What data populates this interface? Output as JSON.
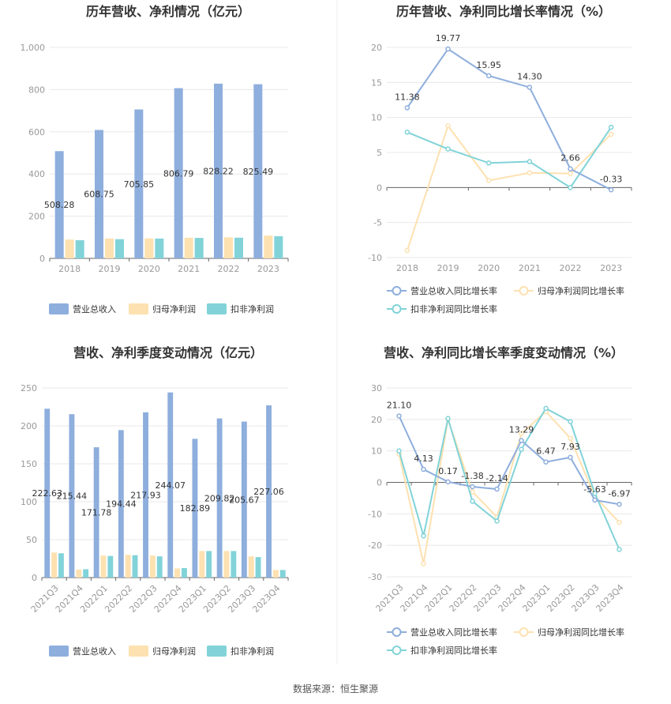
{
  "colors": {
    "revenue": "#8eaedd",
    "net_profit": "#fde1b0",
    "deducted_profit": "#81d3d8",
    "line_revenue": "#8eaedd",
    "line_net_profit": "#fde1b0",
    "line_deducted_profit": "#81d3d8",
    "grid": "#e8e8e8",
    "axis": "#666666",
    "divider": "#eeeeee"
  },
  "source": "数据来源：恒生聚源",
  "chart_data": [
    {
      "id": "annual-bar",
      "type": "bar",
      "title": "历年营收、净利情况（亿元）",
      "categories": [
        "2018",
        "2019",
        "2020",
        "2021",
        "2022",
        "2023"
      ],
      "ylim": [
        0,
        1000
      ],
      "yticks": [
        0,
        200,
        400,
        600,
        800,
        1000
      ],
      "ytick_labels": [
        "0",
        "200",
        "400",
        "600",
        "800",
        "1,000"
      ],
      "series": [
        {
          "name": "营业总收入",
          "values": [
            508.28,
            608.75,
            705.85,
            806.79,
            828.22,
            825.49
          ],
          "labels": [
            "508.28",
            "608.75",
            "705.85",
            "806.79",
            "828.22",
            "825.49"
          ]
        },
        {
          "name": "归母净利润",
          "values": [
            89,
            94,
            95,
            98,
            100,
            108
          ]
        },
        {
          "name": "扣非净利润",
          "values": [
            86,
            91,
            94,
            97,
            98,
            105
          ]
        }
      ],
      "legend": "bottom"
    },
    {
      "id": "annual-line",
      "type": "line",
      "title": "历年营收、净利同比增长率情况（%）",
      "categories": [
        "2018",
        "2019",
        "2020",
        "2021",
        "2022",
        "2023"
      ],
      "ylim": [
        -10,
        20
      ],
      "yticks": [
        -10,
        -5,
        0,
        5,
        10,
        15,
        20
      ],
      "ytick_labels": [
        "-10",
        "-5",
        "0",
        "5",
        "10",
        "15",
        "20"
      ],
      "series": [
        {
          "name": "营业总收入同比增长率",
          "values": [
            11.38,
            19.77,
            15.95,
            14.3,
            2.66,
            -0.33
          ],
          "labels": [
            "11.38",
            "19.77",
            "15.95",
            "14.30",
            "2.66",
            "-0.33"
          ]
        },
        {
          "name": "归母净利润同比增长率",
          "values": [
            -9.0,
            8.8,
            1.0,
            2.1,
            2.0,
            7.6
          ]
        },
        {
          "name": "扣非净利润同比增长率",
          "values": [
            7.9,
            5.5,
            3.5,
            3.7,
            0.0,
            8.6
          ]
        }
      ],
      "legend": "bottom"
    },
    {
      "id": "quarter-bar",
      "type": "bar",
      "title": "营收、净利季度变动情况（亿元）",
      "categories": [
        "2021Q3",
        "2021Q4",
        "2022Q1",
        "2022Q2",
        "2022Q3",
        "2022Q4",
        "2023Q1",
        "2023Q2",
        "2023Q3",
        "2023Q4"
      ],
      "ylim": [
        0,
        250
      ],
      "yticks": [
        0,
        50,
        100,
        150,
        200,
        250
      ],
      "ytick_labels": [
        "0",
        "50",
        "100",
        "150",
        "200",
        "250"
      ],
      "series": [
        {
          "name": "营业总收入",
          "values": [
            222.63,
            215.44,
            171.78,
            194.44,
            217.93,
            244.07,
            182.89,
            209.82,
            205.67,
            227.06
          ],
          "labels": [
            "222.63",
            "215.44",
            "171.78",
            "194.44",
            "217.93",
            "244.07",
            "182.89",
            "209.82",
            "205.67",
            "227.06"
          ]
        },
        {
          "name": "归母净利润",
          "values": [
            33,
            10.5,
            29,
            30,
            29,
            12,
            35,
            35,
            28,
            10
          ]
        },
        {
          "name": "扣非净利润",
          "values": [
            32,
            11,
            28.5,
            29.5,
            28,
            12.5,
            35,
            35,
            27,
            10
          ]
        }
      ],
      "legend": "bottom"
    },
    {
      "id": "quarter-line",
      "type": "line",
      "title": "营收、净利同比增长率季度变动情况（%）",
      "categories": [
        "2021Q3",
        "2021Q4",
        "2022Q1",
        "2022Q2",
        "2022Q3",
        "2022Q4",
        "2023Q1",
        "2023Q2",
        "2023Q3",
        "2023Q4"
      ],
      "ylim": [
        -30,
        30
      ],
      "yticks": [
        -30,
        -20,
        -10,
        0,
        10,
        20,
        30
      ],
      "ytick_labels": [
        "-30",
        "-20",
        "-10",
        "0",
        "10",
        "20",
        "30"
      ],
      "series": [
        {
          "name": "营业总收入同比增长率",
          "values": [
            21.1,
            4.13,
            0.17,
            -1.38,
            -2.14,
            13.29,
            6.47,
            7.93,
            -5.63,
            -6.97
          ],
          "labels": [
            "21.10",
            "4.13",
            "0.17",
            "-1.38",
            "-2.14",
            "13.29",
            "6.47",
            "7.93",
            "-5.63",
            "-6.97"
          ]
        },
        {
          "name": "归母净利润同比增长率",
          "values": [
            9.0,
            -25.8,
            20.0,
            -3.0,
            -11.0,
            15.5,
            22.5,
            14.0,
            -4.5,
            -12.7
          ]
        },
        {
          "name": "扣非净利润同比增长率",
          "values": [
            10.0,
            -17.0,
            20.3,
            -6.0,
            -12.3,
            10.5,
            23.5,
            19.3,
            -3.5,
            -21.3
          ]
        }
      ],
      "legend": "bottom"
    }
  ]
}
